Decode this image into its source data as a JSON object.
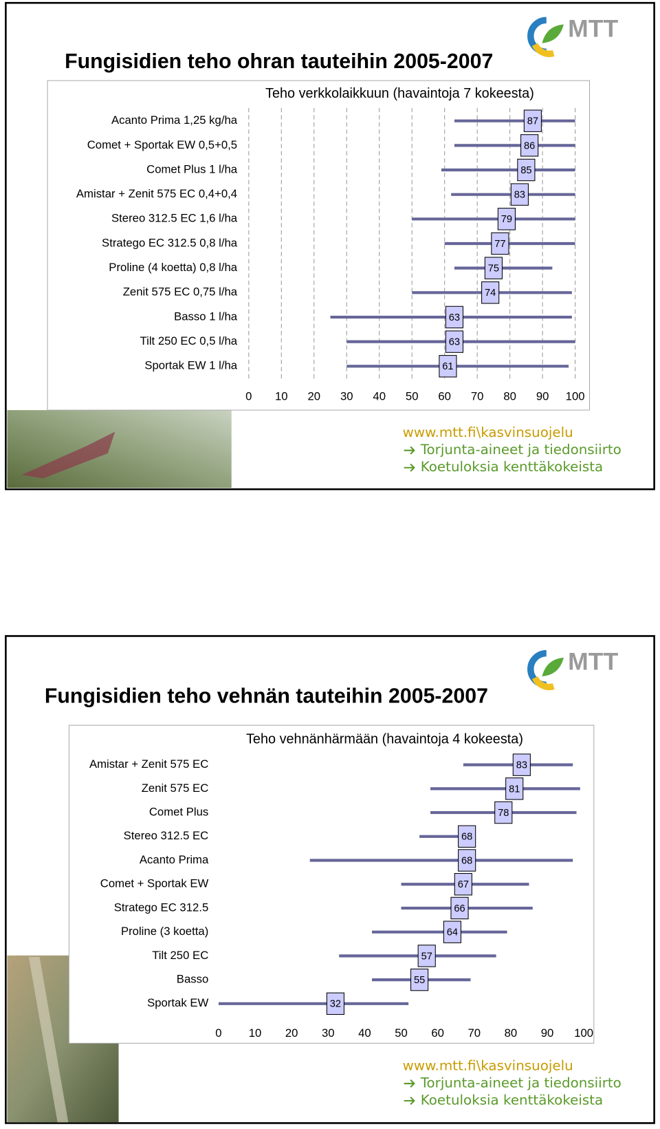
{
  "slides": [
    {
      "title": "Fungisidien teho ohran tauteihin 2005-2007",
      "logo": "MTT",
      "links": [
        "www.mtt.fi\\kasvinsuojelu",
        "Torjunta-aineet ja tiedonsiirto",
        "Koetuloksia kenttäkokeista"
      ]
    },
    {
      "title": "Fungisidien teho vehnän tauteihin 2005-2007",
      "logo": "MTT",
      "links": [
        "www.mtt.fi\\kasvinsuojelu",
        "Torjunta-aineet ja tiedonsiirto",
        "Koetuloksia kenttäkokeista"
      ]
    }
  ],
  "chart_data": [
    {
      "type": "range",
      "title": "Teho verkkolaikkuun (havaintoja 7 kokeesta)",
      "categories": [
        "Acanto Prima 1,25 kg/ha",
        "Comet + Sportak EW 0,5+0,5",
        "Comet Plus 1 l/ha",
        "Amistar + Zenit 575 EC 0,4+0,4",
        "Stereo 312.5 EC 1,6 l/ha",
        "Stratego EC 312.5 0,8 l/ha",
        "Proline (4 koetta) 0,8 l/ha",
        "Zenit 575 EC 0,75 l/ha",
        "Basso 1 l/ha",
        "Tilt 250 EC 0,5 l/ha",
        "Sportak EW 1 l/ha"
      ],
      "values": [
        87,
        86,
        85,
        83,
        79,
        77,
        75,
        74,
        63,
        63,
        61
      ],
      "low": [
        63,
        63,
        59,
        62,
        50,
        60,
        63,
        50,
        25,
        30,
        30
      ],
      "high": [
        100,
        100,
        100,
        100,
        100,
        100,
        93,
        99,
        99,
        100,
        98
      ],
      "xlim": [
        0,
        100
      ],
      "xticks": [
        0,
        10,
        20,
        30,
        40,
        50,
        60,
        70,
        80,
        90,
        100
      ],
      "grid": true,
      "color": "#666699",
      "box_color": "#ccccff"
    },
    {
      "type": "range",
      "title": "Teho vehnänhärmään (havaintoja 4 kokeesta)",
      "categories": [
        "Amistar + Zenit 575 EC",
        "Zenit 575 EC",
        "Comet Plus",
        "Stereo 312.5 EC",
        "Acanto Prima",
        "Comet + Sportak EW",
        "Stratego EC 312.5",
        "Proline (3 koetta)",
        "Tilt 250 EC",
        "Basso",
        "Sportak EW"
      ],
      "values": [
        83,
        81,
        78,
        68,
        68,
        67,
        66,
        64,
        57,
        55,
        32
      ],
      "low": [
        67,
        58,
        58,
        55,
        25,
        50,
        50,
        42,
        33,
        42,
        0
      ],
      "high": [
        97,
        99,
        98,
        70,
        97,
        85,
        86,
        79,
        76,
        69,
        52
      ],
      "xlim": [
        0,
        100
      ],
      "xticks": [
        0,
        10,
        20,
        30,
        40,
        50,
        60,
        70,
        80,
        90,
        100
      ],
      "grid": false,
      "color": "#666699",
      "box_color": "#ccccff"
    }
  ]
}
